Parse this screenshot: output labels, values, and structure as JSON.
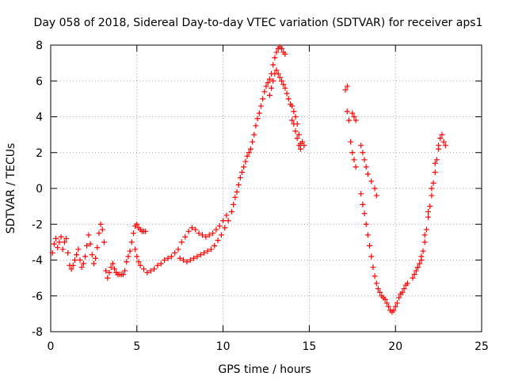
{
  "chart_data": {
    "type": "scatter",
    "title": "Day 058 of 2018, Sidereal Day-to-day VTEC variation (SDTVAR) for receiver aps1",
    "xlabel": "GPS time / hours",
    "ylabel": "SDTVAR / TECUs",
    "xlim": [
      0,
      25
    ],
    "ylim": [
      -8,
      8
    ],
    "xticks": [
      "0",
      "5",
      "10",
      "15",
      "20",
      "25"
    ],
    "yticks": [
      "-8",
      "-6",
      "-4",
      "-2",
      "0",
      "2",
      "4",
      "6",
      "8"
    ],
    "grid": true,
    "marker": "plus",
    "color": "#ff0000",
    "series": [
      {
        "points": [
          [
            0.1,
            -3.6
          ],
          [
            0.2,
            -3.1
          ],
          [
            0.3,
            -2.8
          ],
          [
            0.4,
            -3.3
          ],
          [
            0.5,
            -3.0
          ],
          [
            0.6,
            -2.7
          ],
          [
            0.7,
            -3.4
          ],
          [
            0.8,
            -3.0
          ],
          [
            0.9,
            -2.8
          ],
          [
            1.0,
            -3.6
          ],
          [
            1.1,
            -4.3
          ],
          [
            1.2,
            -4.5
          ],
          [
            1.3,
            -4.3
          ],
          [
            1.4,
            -4.0
          ],
          [
            1.5,
            -3.7
          ],
          [
            1.6,
            -3.4
          ],
          [
            1.7,
            -4.0
          ],
          [
            1.8,
            -4.4
          ],
          [
            1.9,
            -4.2
          ],
          [
            2.0,
            -3.8
          ],
          [
            2.1,
            -3.2
          ],
          [
            2.2,
            -2.6
          ],
          [
            2.3,
            -3.1
          ],
          [
            2.4,
            -3.7
          ],
          [
            2.5,
            -4.2
          ],
          [
            2.6,
            -3.9
          ],
          [
            2.7,
            -3.3
          ],
          [
            2.8,
            -2.5
          ],
          [
            2.9,
            -2.0
          ],
          [
            3.0,
            -2.3
          ],
          [
            3.1,
            -3.0
          ],
          [
            3.2,
            -4.6
          ],
          [
            3.3,
            -5.0
          ],
          [
            3.4,
            -4.7
          ],
          [
            3.5,
            -4.4
          ],
          [
            3.6,
            -4.2
          ],
          [
            3.7,
            -4.5
          ],
          [
            3.8,
            -4.7
          ],
          [
            3.9,
            -4.8
          ],
          [
            4.0,
            -4.8
          ],
          [
            4.1,
            -4.8
          ],
          [
            4.2,
            -4.8
          ],
          [
            4.3,
            -4.6
          ],
          [
            4.4,
            -4.1
          ],
          [
            4.5,
            -3.8
          ],
          [
            4.6,
            -3.5
          ],
          [
            4.7,
            -3.0
          ],
          [
            4.8,
            -2.5
          ],
          [
            4.9,
            -2.1
          ],
          [
            5.0,
            -2.0
          ],
          [
            5.1,
            -2.2
          ],
          [
            5.2,
            -2.3
          ],
          [
            5.3,
            -2.4
          ],
          [
            5.4,
            -2.4
          ],
          [
            5.5,
            -2.4
          ],
          [
            4.9,
            -3.4
          ],
          [
            5.0,
            -3.8
          ],
          [
            5.1,
            -4.1
          ],
          [
            5.2,
            -4.3
          ],
          [
            5.4,
            -4.5
          ],
          [
            5.6,
            -4.7
          ],
          [
            5.8,
            -4.6
          ],
          [
            6.0,
            -4.5
          ],
          [
            6.2,
            -4.3
          ],
          [
            6.4,
            -4.2
          ],
          [
            6.6,
            -4.0
          ],
          [
            6.8,
            -3.9
          ],
          [
            7.0,
            -3.8
          ],
          [
            7.2,
            -3.6
          ],
          [
            7.4,
            -3.4
          ],
          [
            7.6,
            -3.0
          ],
          [
            7.8,
            -2.7
          ],
          [
            8.0,
            -2.4
          ],
          [
            8.2,
            -2.2
          ],
          [
            8.4,
            -2.3
          ],
          [
            8.6,
            -2.5
          ],
          [
            8.8,
            -2.6
          ],
          [
            9.0,
            -2.7
          ],
          [
            9.2,
            -2.6
          ],
          [
            9.4,
            -2.5
          ],
          [
            9.6,
            -2.3
          ],
          [
            9.8,
            -2.1
          ],
          [
            10.0,
            -1.8
          ],
          [
            10.2,
            -1.5
          ],
          [
            7.5,
            -3.9
          ],
          [
            7.7,
            -4.0
          ],
          [
            7.9,
            -4.1
          ],
          [
            8.1,
            -4.0
          ],
          [
            8.3,
            -3.9
          ],
          [
            8.5,
            -3.8
          ],
          [
            8.7,
            -3.7
          ],
          [
            8.9,
            -3.6
          ],
          [
            9.1,
            -3.5
          ],
          [
            9.3,
            -3.4
          ],
          [
            9.5,
            -3.2
          ],
          [
            9.7,
            -2.9
          ],
          [
            9.9,
            -2.6
          ],
          [
            10.1,
            -2.2
          ],
          [
            10.3,
            -1.8
          ],
          [
            10.5,
            -1.3
          ],
          [
            10.6,
            -0.9
          ],
          [
            10.7,
            -0.5
          ],
          [
            10.8,
            -0.2
          ],
          [
            10.9,
            0.2
          ],
          [
            11.0,
            0.6
          ],
          [
            11.1,
            0.9
          ],
          [
            11.2,
            1.2
          ],
          [
            11.3,
            1.5
          ],
          [
            11.4,
            1.8
          ],
          [
            11.5,
            2.0
          ],
          [
            11.6,
            2.2
          ],
          [
            11.7,
            2.6
          ],
          [
            11.8,
            3.0
          ],
          [
            11.9,
            3.5
          ],
          [
            12.0,
            3.9
          ],
          [
            12.1,
            4.2
          ],
          [
            12.2,
            4.6
          ],
          [
            12.3,
            5.0
          ],
          [
            12.4,
            5.4
          ],
          [
            12.5,
            5.7
          ],
          [
            12.6,
            5.9
          ],
          [
            12.7,
            6.1
          ],
          [
            12.8,
            6.4
          ],
          [
            12.9,
            6.9
          ],
          [
            13.0,
            7.3
          ],
          [
            13.1,
            7.6
          ],
          [
            13.2,
            7.8
          ],
          [
            13.3,
            7.9
          ],
          [
            13.4,
            7.8
          ],
          [
            13.5,
            7.6
          ],
          [
            13.6,
            7.5
          ],
          [
            12.7,
            5.2
          ],
          [
            12.8,
            5.6
          ],
          [
            12.9,
            6.0
          ],
          [
            13.0,
            6.4
          ],
          [
            13.1,
            6.6
          ],
          [
            13.2,
            6.4
          ],
          [
            13.3,
            6.2
          ],
          [
            13.4,
            6.0
          ],
          [
            13.5,
            5.8
          ],
          [
            13.6,
            5.6
          ],
          [
            13.7,
            5.3
          ],
          [
            13.8,
            5.0
          ],
          [
            13.9,
            4.7
          ],
          [
            14.0,
            4.6
          ],
          [
            14.1,
            4.3
          ],
          [
            14.2,
            4.0
          ],
          [
            14.3,
            3.6
          ],
          [
            14.4,
            3.0
          ],
          [
            14.5,
            2.5
          ],
          [
            14.6,
            2.6
          ],
          [
            14.7,
            2.4
          ],
          [
            14.0,
            3.8
          ],
          [
            14.1,
            3.6
          ],
          [
            14.2,
            3.2
          ],
          [
            14.3,
            2.8
          ],
          [
            14.4,
            2.4
          ],
          [
            14.5,
            2.2
          ],
          [
            17.1,
            5.5
          ],
          [
            17.2,
            5.7
          ],
          [
            17.2,
            4.3
          ],
          [
            17.3,
            3.8
          ],
          [
            17.4,
            2.6
          ],
          [
            17.5,
            2.0
          ],
          [
            17.6,
            1.6
          ],
          [
            17.7,
            1.2
          ],
          [
            17.5,
            4.2
          ],
          [
            17.6,
            4.0
          ],
          [
            17.7,
            3.8
          ],
          [
            18.0,
            2.4
          ],
          [
            18.1,
            2.0
          ],
          [
            18.2,
            1.6
          ],
          [
            18.3,
            1.2
          ],
          [
            18.4,
            0.8
          ],
          [
            18.6,
            0.4
          ],
          [
            18.8,
            0.0
          ],
          [
            18.9,
            -0.4
          ],
          [
            18.0,
            -0.3
          ],
          [
            18.1,
            -0.9
          ],
          [
            18.2,
            -1.4
          ],
          [
            18.3,
            -2.0
          ],
          [
            18.4,
            -2.6
          ],
          [
            18.5,
            -3.2
          ],
          [
            18.6,
            -3.8
          ],
          [
            18.7,
            -4.4
          ],
          [
            18.8,
            -4.9
          ],
          [
            18.9,
            -5.3
          ],
          [
            19.0,
            -5.6
          ],
          [
            19.1,
            -5.8
          ],
          [
            19.2,
            -6.0
          ],
          [
            19.3,
            -6.1
          ],
          [
            19.4,
            -6.2
          ],
          [
            19.5,
            -6.4
          ],
          [
            19.6,
            -6.6
          ],
          [
            19.7,
            -6.8
          ],
          [
            19.8,
            -6.9
          ],
          [
            19.9,
            -6.8
          ],
          [
            20.0,
            -6.6
          ],
          [
            20.1,
            -6.4
          ],
          [
            20.2,
            -6.1
          ],
          [
            20.3,
            -5.9
          ],
          [
            20.4,
            -5.8
          ],
          [
            20.5,
            -5.6
          ],
          [
            20.6,
            -5.4
          ],
          [
            20.7,
            -5.3
          ],
          [
            21.0,
            -5.0
          ],
          [
            21.1,
            -4.8
          ],
          [
            21.2,
            -4.6
          ],
          [
            21.3,
            -4.4
          ],
          [
            21.4,
            -4.2
          ],
          [
            21.5,
            -4.0
          ],
          [
            21.6,
            -3.5
          ],
          [
            21.7,
            -3.0
          ],
          [
            21.8,
            -2.3
          ],
          [
            21.9,
            -1.6
          ],
          [
            22.0,
            -1.0
          ],
          [
            22.1,
            -0.4
          ],
          [
            22.2,
            0.3
          ],
          [
            22.3,
            0.9
          ],
          [
            22.4,
            1.6
          ],
          [
            22.5,
            2.2
          ],
          [
            22.6,
            2.8
          ],
          [
            22.7,
            3.0
          ],
          [
            22.8,
            2.6
          ],
          [
            22.9,
            2.4
          ],
          [
            21.3,
            -4.4
          ],
          [
            21.5,
            -3.8
          ],
          [
            21.7,
            -2.6
          ],
          [
            21.9,
            -1.3
          ],
          [
            22.1,
            0.0
          ],
          [
            22.3,
            1.4
          ],
          [
            22.5,
            2.4
          ]
        ]
      }
    ]
  }
}
